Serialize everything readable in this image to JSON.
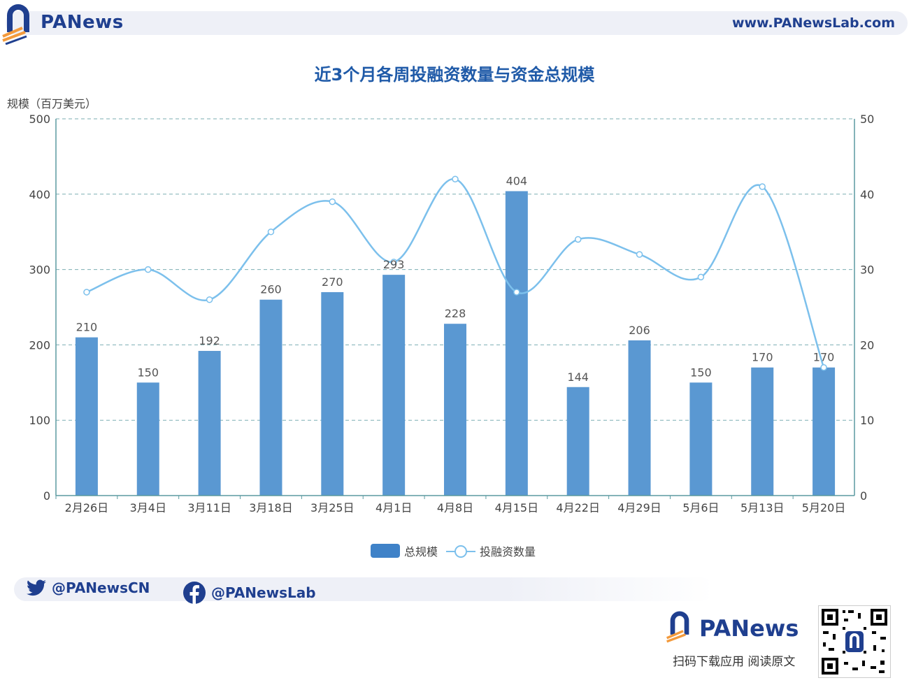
{
  "brand": {
    "logo_text": "PANews",
    "url": "www.PANewsLab.com"
  },
  "chart_title": "近3个月各周投融资数量与资金总规模",
  "y_left_caption": "规模（百万美元）",
  "legend": {
    "bar": "总规模",
    "line": "投融资数量"
  },
  "footer": {
    "twitter": "@PANewsCN",
    "facebook": "@PANewsLab",
    "logo_text": "PANews",
    "scan_text": "扫码下载应用  阅读原文"
  },
  "colors": {
    "bar": "#5a98d2",
    "line": "#7cc0ec",
    "brand": "#1f3f8f",
    "title": "#1f5aa8",
    "accent": "#f39a3c"
  },
  "chart_data": {
    "type": "bar+line",
    "categories": [
      "2月26日",
      "3月4日",
      "3月11日",
      "3月18日",
      "3月25日",
      "4月1日",
      "4月8日",
      "4月15日",
      "4月22日",
      "4月29日",
      "5月6日",
      "5月13日",
      "5月20日"
    ],
    "series": [
      {
        "name": "总规模",
        "type": "bar",
        "axis": "left",
        "values": [
          210,
          150,
          192,
          260,
          270,
          293,
          228,
          404,
          144,
          206,
          150,
          170,
          170
        ]
      },
      {
        "name": "投融资数量",
        "type": "line",
        "axis": "right",
        "values": [
          27,
          30,
          26,
          35,
          39,
          31,
          42,
          27,
          34,
          32,
          29,
          41,
          17
        ]
      }
    ],
    "left_axis": {
      "min": 0,
      "max": 500,
      "ticks": [
        0,
        100,
        200,
        300,
        400,
        500
      ]
    },
    "right_axis": {
      "min": 0,
      "max": 50,
      "ticks": [
        0,
        10,
        20,
        30,
        40,
        50
      ]
    },
    "grid": true,
    "legend_position": "bottom"
  }
}
